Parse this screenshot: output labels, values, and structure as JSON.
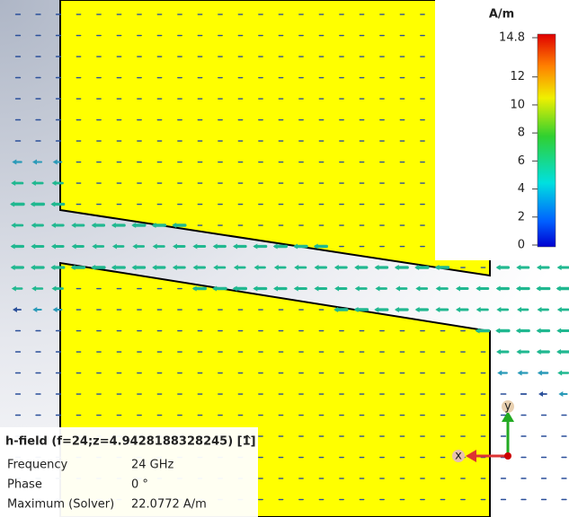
{
  "colorbar": {
    "unit": "A/m",
    "ticks": [
      14.8,
      12,
      10,
      8,
      6,
      4,
      2,
      0
    ]
  },
  "info": {
    "title": "h-field (f=24;z=4.9428188328245) [1]",
    "rows": [
      [
        "Frequency",
        "24 GHz"
      ],
      [
        "Phase",
        "0 °"
      ],
      [
        "Maximum (Solver)",
        "22.0772 A/m"
      ]
    ]
  },
  "axes": {
    "x": "x",
    "y": "y"
  }
}
